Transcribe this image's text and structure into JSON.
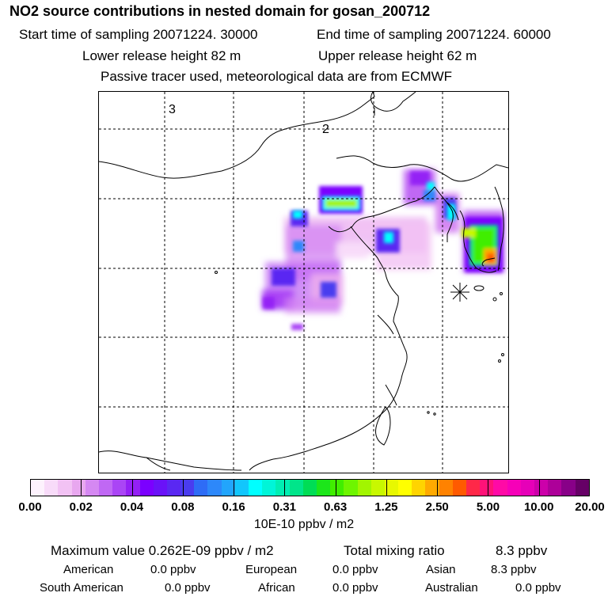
{
  "title": "NO2 source contributions in nested domain for gosan_200712",
  "header": {
    "start_label": "Start time of sampling 20071224. 30000",
    "end_label": "End time of sampling 20071224. 60000",
    "lower_height": "Lower release height   82 m",
    "upper_height": "Upper release height   62 m",
    "tracer_note": "Passive tracer used, meteorological data are from ECMWF"
  },
  "map": {
    "region_labels": [
      "3",
      "2"
    ],
    "receptor_marker": "asterisk-receptor-icon"
  },
  "colorbar": {
    "ticks": [
      "0.00",
      "0.02",
      "0.04",
      "0.08",
      "0.16",
      "0.31",
      "0.63",
      "1.25",
      "2.50",
      "5.00",
      "10.00",
      "20.00"
    ],
    "colors": [
      "#fdf2fd",
      "#f8dbf9",
      "#f2c2f4",
      "#e8a7ef",
      "#d588f2",
      "#c068f4",
      "#aa45f5",
      "#9420f5",
      "#7b00ff",
      "#6a12f8",
      "#5a28f2",
      "#4a3cef",
      "#2e6cf6",
      "#2d88fa",
      "#22a5fc",
      "#12c6fc",
      "#00ffff",
      "#00f5d8",
      "#00eeb3",
      "#00e58a",
      "#00dd55",
      "#1ce61a",
      "#40ee00",
      "#6ef500",
      "#a2f500",
      "#c8f800",
      "#e8f800",
      "#ffff00",
      "#ffd400",
      "#ffaa00",
      "#ff8200",
      "#ff5a00",
      "#ff2848",
      "#ff1278",
      "#ff0aa6",
      "#f600b8",
      "#e600b8",
      "#cc00aa",
      "#ad0099",
      "#880088",
      "#660066"
    ],
    "unit": "10E-10 ppbv / m2"
  },
  "stats": {
    "maximum": "Maximum value  0.262E-09 ppbv / m2",
    "total_label": "Total mixing ratio",
    "total_value": "8.3 ppbv",
    "rows": [
      [
        [
          "American",
          "0.0 ppbv"
        ],
        [
          "European",
          "0.0 ppbv"
        ],
        [
          "Asian",
          "8.3 ppbv"
        ]
      ],
      [
        [
          "South American",
          "0.0 ppbv"
        ],
        [
          "African",
          "0.0 ppbv"
        ],
        [
          "Australian",
          "0.0 ppbv"
        ]
      ]
    ]
  }
}
